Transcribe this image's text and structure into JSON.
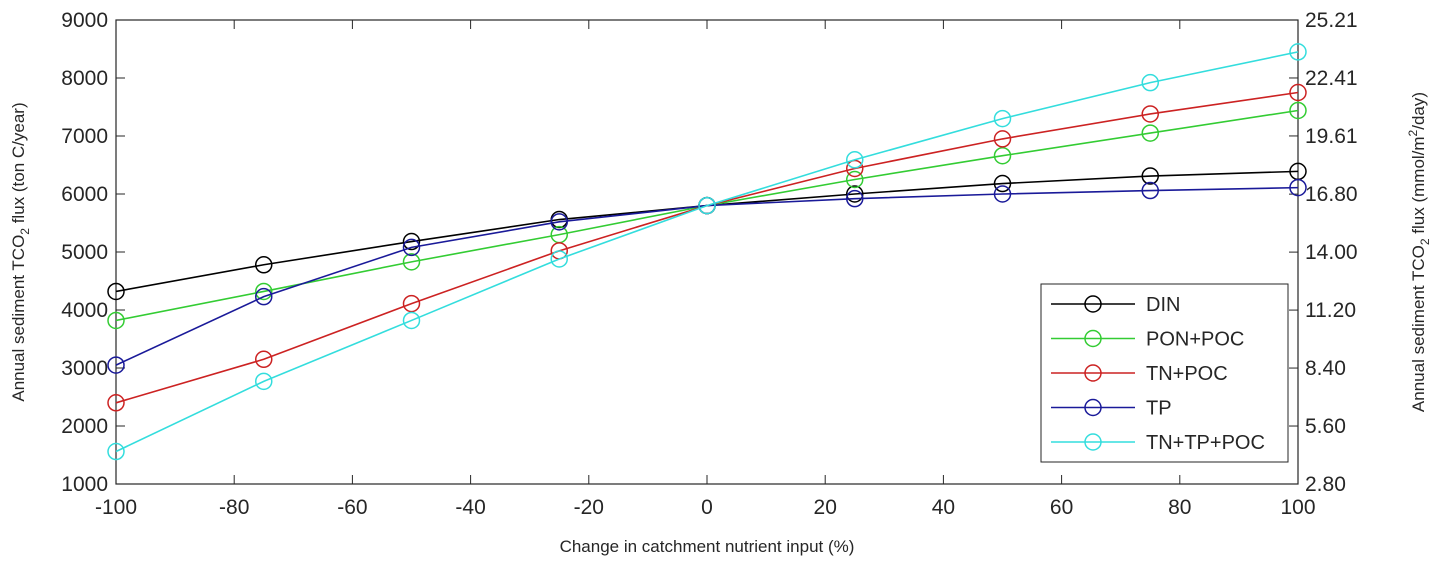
{
  "chart_data": {
    "type": "line",
    "title": "",
    "xlabel": "Change in catchment nutrient input (%)",
    "ylabel_left": {
      "pre": "Annual sediment TCO",
      "sub": "2",
      "post": " flux (ton C/year)"
    },
    "ylabel_right": {
      "pre": "Annual sediment TCO",
      "sub": "2",
      "mid": " flux (mmol/m",
      "sup": "2",
      "post": "/day)"
    },
    "xlim": [
      -100,
      100
    ],
    "ylim": [
      1000,
      9000
    ],
    "x_ticks": [
      -100,
      -80,
      -60,
      -40,
      -20,
      0,
      20,
      40,
      60,
      80,
      100
    ],
    "x_tick_labels": [
      "-100",
      "-80",
      "-60",
      "-40",
      "-20",
      "0",
      "20",
      "40",
      "60",
      "80",
      "100"
    ],
    "y_ticks": [
      1000,
      2000,
      3000,
      4000,
      5000,
      6000,
      7000,
      8000,
      9000
    ],
    "y_tick_labels": [
      "1000",
      "2000",
      "3000",
      "4000",
      "5000",
      "6000",
      "7000",
      "8000",
      "9000"
    ],
    "y2_tick_values": [
      2.8,
      5.6,
      8.4,
      11.2,
      14.0,
      16.8,
      19.61,
      22.41,
      25.21
    ],
    "y2_tick_labels": [
      "2.80",
      "5.60",
      "8.40",
      "11.20",
      "14.00",
      "16.80",
      "19.61",
      "22.41",
      "25.21"
    ],
    "y2lim": [
      2.8,
      25.21
    ],
    "grid": false,
    "legend_position": "bottom-right",
    "marker": "circle",
    "x": [
      -100,
      -75,
      -50,
      -25,
      0,
      25,
      50,
      75,
      100
    ],
    "series": [
      {
        "name": "DIN",
        "color": "#000000",
        "values": [
          4320,
          4780,
          5180,
          5560,
          5800,
          6000,
          6180,
          6310,
          6390
        ]
      },
      {
        "name": "PON+POC",
        "color": "#33cc33",
        "values": [
          3820,
          4320,
          4830,
          5300,
          5800,
          6250,
          6660,
          7050,
          7440
        ]
      },
      {
        "name": "TN+POC",
        "color": "#cc2222",
        "values": [
          2400,
          3150,
          4110,
          5020,
          5800,
          6440,
          6950,
          7380,
          7750
        ]
      },
      {
        "name": "TP",
        "color": "#1a1a99",
        "values": [
          3050,
          4230,
          5080,
          5520,
          5800,
          5920,
          6000,
          6060,
          6110
        ]
      },
      {
        "name": "TN+TP+POC",
        "color": "#33dddd",
        "values": [
          1560,
          2770,
          3820,
          4880,
          5800,
          6590,
          7300,
          7920,
          8450
        ]
      }
    ]
  }
}
